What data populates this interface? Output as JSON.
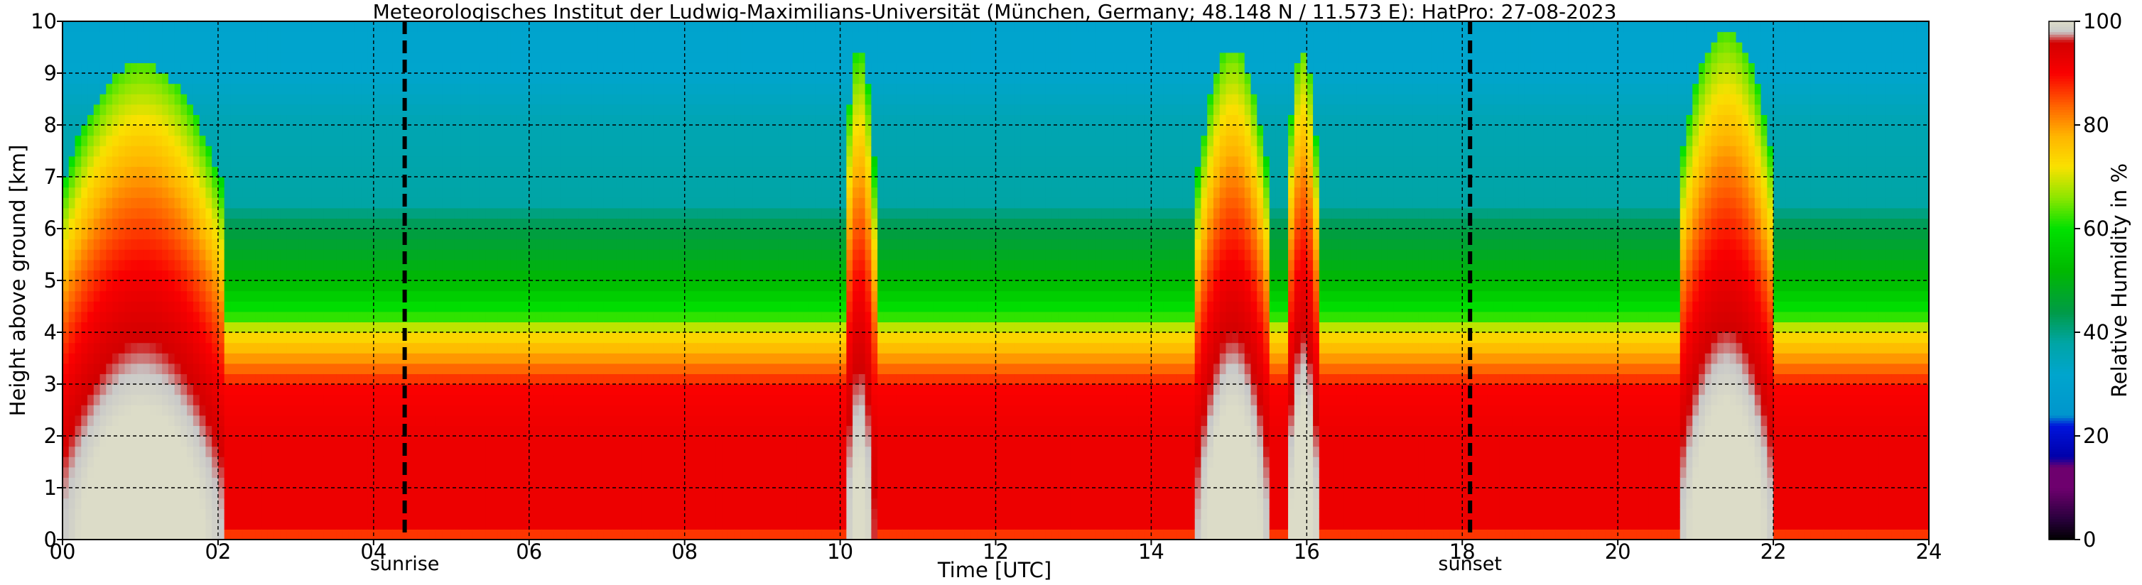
{
  "chart_data": {
    "type": "heatmap",
    "title": "Meteorologisches Institut der Ludwig-Maximilians-Universität (München, Germany; 48.148 N / 11.573 E):    HatPro: 27-08-2023",
    "xlabel": "Time [UTC]",
    "ylabel": "Height above ground [km]",
    "xlim": [
      0,
      24
    ],
    "ylim": [
      0,
      10
    ],
    "x_ticks": [
      "00",
      "02",
      "04",
      "06",
      "08",
      "10",
      "12",
      "14",
      "16",
      "18",
      "20",
      "22",
      "24"
    ],
    "y_ticks": [
      "0",
      "1",
      "2",
      "3",
      "4",
      "5",
      "6",
      "7",
      "8",
      "9",
      "10"
    ],
    "grid": true,
    "annotations": [
      {
        "label": "sunrise",
        "time": 4.4
      },
      {
        "label": "sunset",
        "time": 18.1
      }
    ],
    "colorbar": {
      "label": "Relative Humidity in %",
      "range": [
        0,
        100
      ],
      "ticks": [
        "0",
        "20",
        "40",
        "60",
        "80",
        "100"
      ]
    },
    "background_profile": [
      {
        "height_km": 0.0,
        "rh": 84
      },
      {
        "height_km": 0.3,
        "rh": 92
      },
      {
        "height_km": 2.0,
        "rh": 92
      },
      {
        "height_km": 2.9,
        "rh": 90
      },
      {
        "height_km": 3.5,
        "rh": 80
      },
      {
        "height_km": 4.0,
        "rh": 72
      },
      {
        "height_km": 4.3,
        "rh": 62
      },
      {
        "height_km": 5.0,
        "rh": 52
      },
      {
        "height_km": 6.0,
        "rh": 44
      },
      {
        "height_km": 6.5,
        "rh": 38
      },
      {
        "height_km": 8.0,
        "rh": 36
      },
      {
        "height_km": 9.0,
        "rh": 32
      },
      {
        "height_km": 10.0,
        "rh": 31
      }
    ],
    "moist_episodes": [
      {
        "start": 0.0,
        "end": 2.05,
        "top_km": 9.2,
        "peak_rh": 98
      },
      {
        "start": 10.05,
        "end": 10.45,
        "top_km": 9.5,
        "peak_rh": 96
      },
      {
        "start": 14.6,
        "end": 15.5,
        "top_km": 9.5,
        "peak_rh": 98
      },
      {
        "start": 15.75,
        "end": 16.15,
        "top_km": 9.5,
        "peak_rh": 98
      },
      {
        "start": 20.8,
        "end": 22.0,
        "top_km": 9.8,
        "peak_rh": 98
      }
    ]
  }
}
